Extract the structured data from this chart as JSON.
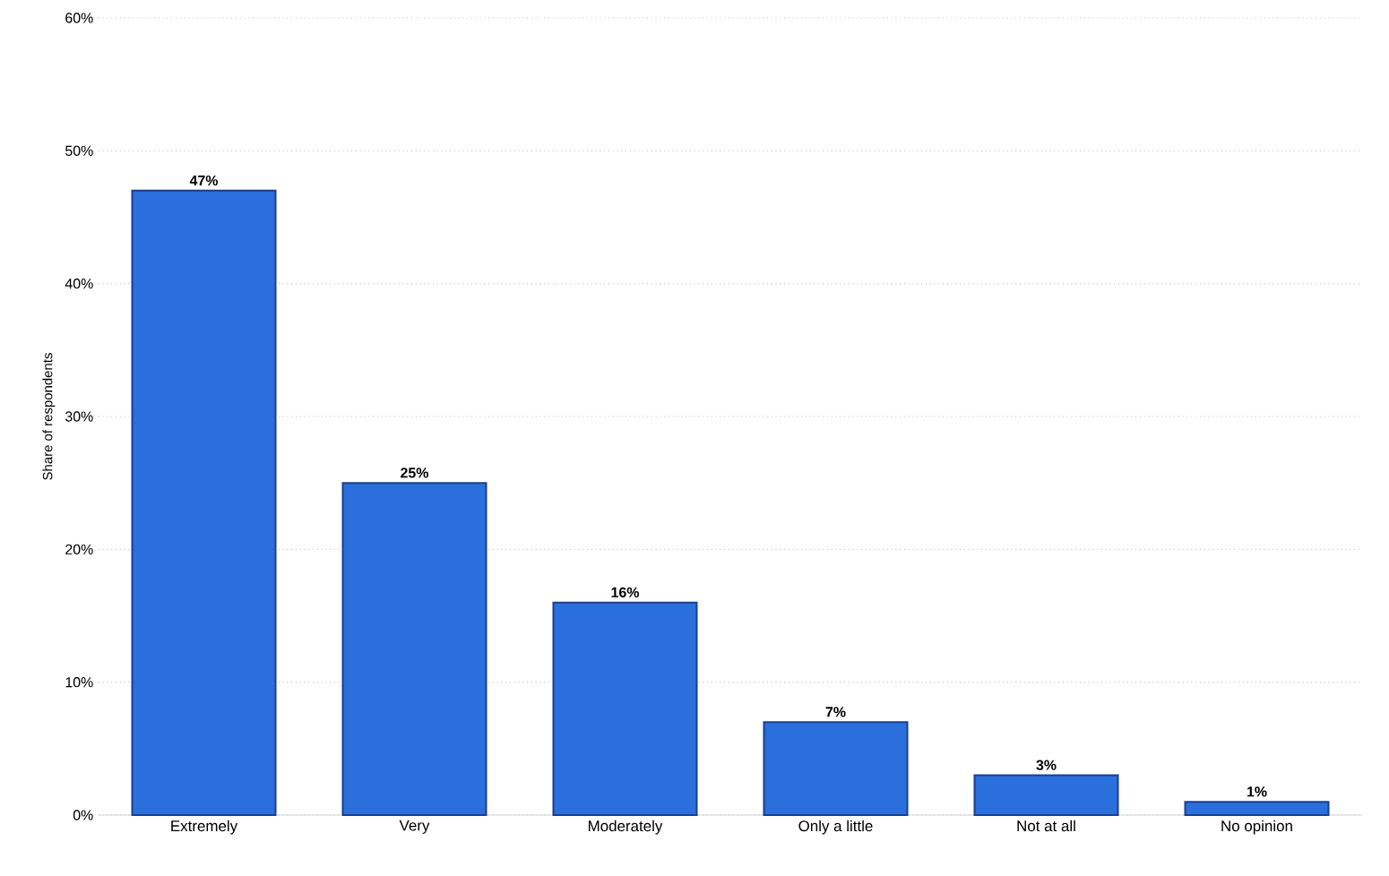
{
  "chart_data": {
    "type": "bar",
    "ylabel": "Share of respondents",
    "categories": [
      "Extremely",
      "Very",
      "Moderately",
      "Only a little",
      "Not at all",
      "No opinion"
    ],
    "values": [
      47,
      25,
      16,
      7,
      3,
      1
    ],
    "value_labels": [
      "47%",
      "25%",
      "16%",
      "7%",
      "3%",
      "1%"
    ],
    "color": "#2a6fdb",
    "ylim": [
      0,
      60
    ],
    "yticks": [
      {
        "value": 0,
        "label": "0%"
      },
      {
        "value": 10,
        "label": "10%"
      },
      {
        "value": 20,
        "label": "20%"
      },
      {
        "value": 30,
        "label": "30%"
      },
      {
        "value": 40,
        "label": "40%"
      },
      {
        "value": 50,
        "label": "50%"
      },
      {
        "value": 60,
        "label": "60%"
      }
    ],
    "grid": "y"
  }
}
